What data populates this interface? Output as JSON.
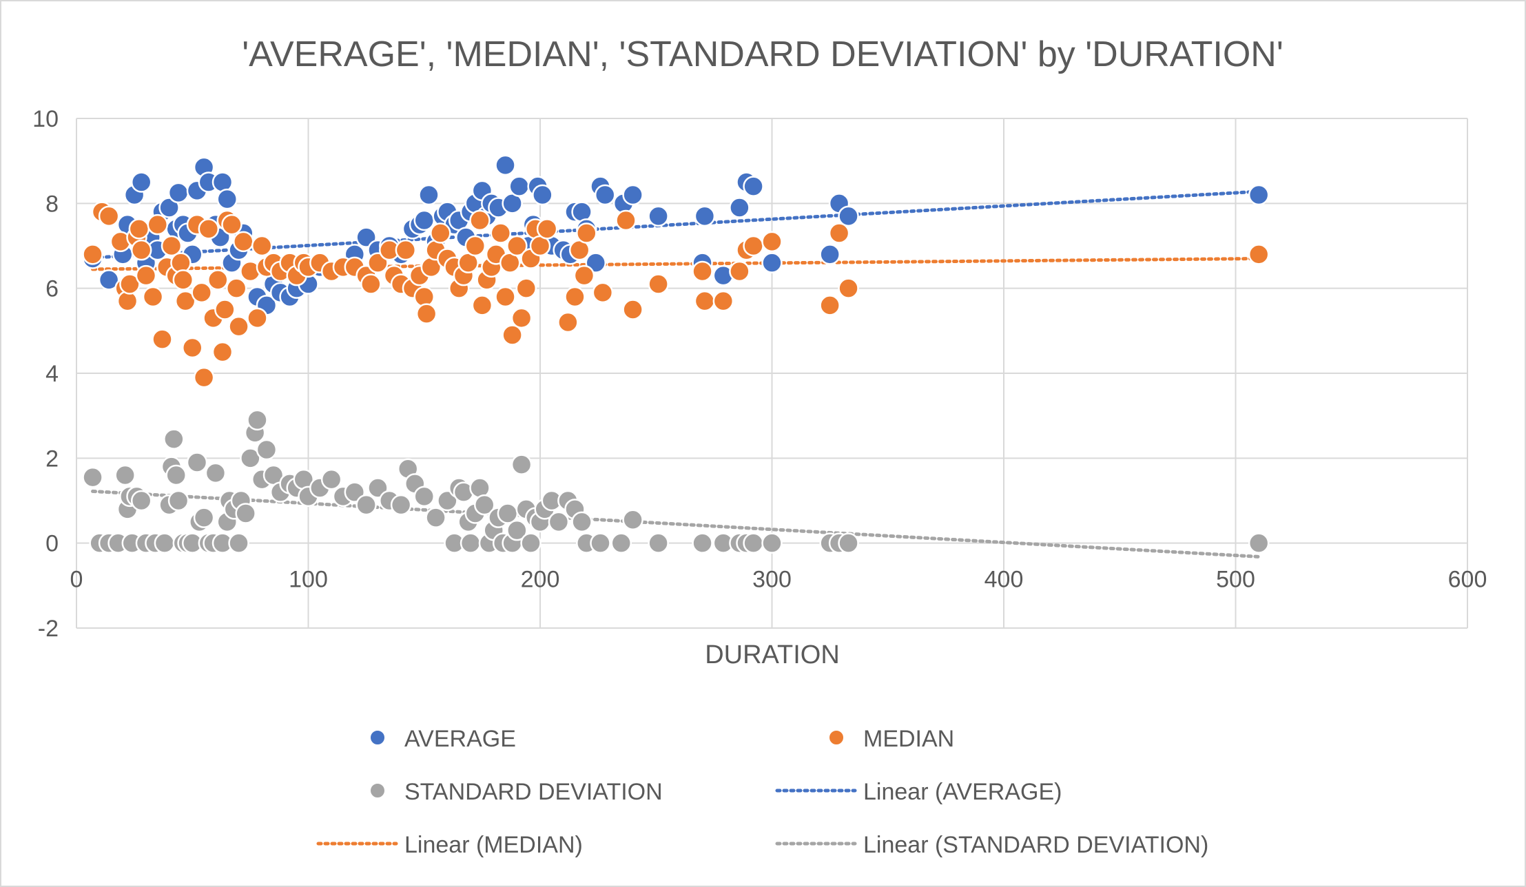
{
  "chart_data": {
    "type": "scatter",
    "title": "'AVERAGE', 'MEDIAN', 'STANDARD DEVIATION' by 'DURATION'",
    "xlabel": "DURATION",
    "ylabel": "",
    "xlim": [
      0,
      600
    ],
    "ylim": [
      -2,
      10
    ],
    "xticks": [
      "0",
      "100",
      "200",
      "300",
      "400",
      "500",
      "600"
    ],
    "yticks": [
      "-2",
      "0",
      "2",
      "4",
      "6",
      "8",
      "10"
    ],
    "grid": true,
    "legend_position": "bottom",
    "series": [
      {
        "name": "AVERAGE",
        "color": "#4472C4",
        "points": [
          [
            7,
            6.7
          ],
          [
            14,
            6.2
          ],
          [
            20,
            6.8
          ],
          [
            22,
            7.5
          ],
          [
            25,
            8.2
          ],
          [
            28,
            8.5
          ],
          [
            30,
            6.6
          ],
          [
            32,
            7.2
          ],
          [
            35,
            6.9
          ],
          [
            37,
            7.8
          ],
          [
            40,
            7.9
          ],
          [
            43,
            7.4
          ],
          [
            44,
            8.25
          ],
          [
            46,
            7.5
          ],
          [
            48,
            7.3
          ],
          [
            50,
            6.8
          ],
          [
            52,
            8.3
          ],
          [
            55,
            8.85
          ],
          [
            57,
            8.5
          ],
          [
            60,
            7.5
          ],
          [
            62,
            7.2
          ],
          [
            63,
            8.5
          ],
          [
            65,
            8.1
          ],
          [
            67,
            6.6
          ],
          [
            70,
            6.9
          ],
          [
            72,
            7.3
          ],
          [
            75,
            6.4
          ],
          [
            78,
            5.8
          ],
          [
            82,
            5.6
          ],
          [
            85,
            6.1
          ],
          [
            88,
            5.9
          ],
          [
            92,
            5.8
          ],
          [
            95,
            6.0
          ],
          [
            98,
            6.3
          ],
          [
            100,
            6.1
          ],
          [
            105,
            6.5
          ],
          [
            110,
            6.4
          ],
          [
            115,
            6.5
          ],
          [
            120,
            6.8
          ],
          [
            125,
            7.2
          ],
          [
            130,
            6.9
          ],
          [
            135,
            7.0
          ],
          [
            140,
            6.8
          ],
          [
            145,
            7.4
          ],
          [
            148,
            7.5
          ],
          [
            150,
            7.6
          ],
          [
            152,
            8.2
          ],
          [
            155,
            7.1
          ],
          [
            158,
            7.7
          ],
          [
            160,
            7.8
          ],
          [
            163,
            7.5
          ],
          [
            165,
            7.6
          ],
          [
            168,
            7.2
          ],
          [
            170,
            7.8
          ],
          [
            172,
            8.0
          ],
          [
            175,
            8.3
          ],
          [
            177,
            7.7
          ],
          [
            179,
            8.0
          ],
          [
            182,
            7.9
          ],
          [
            185,
            8.9
          ],
          [
            188,
            8.0
          ],
          [
            191,
            8.4
          ],
          [
            195,
            7.0
          ],
          [
            197,
            7.5
          ],
          [
            199,
            8.4
          ],
          [
            201,
            8.2
          ],
          [
            205,
            7.0
          ],
          [
            210,
            6.9
          ],
          [
            213,
            6.8
          ],
          [
            215,
            7.8
          ],
          [
            218,
            7.8
          ],
          [
            220,
            7.4
          ],
          [
            224,
            6.6
          ],
          [
            226,
            8.4
          ],
          [
            228,
            8.2
          ],
          [
            236,
            8.0
          ],
          [
            240,
            8.2
          ],
          [
            251,
            7.7
          ],
          [
            270,
            6.6
          ],
          [
            271,
            7.7
          ],
          [
            279,
            6.3
          ],
          [
            286,
            7.9
          ],
          [
            289,
            8.5
          ],
          [
            292,
            8.4
          ],
          [
            300,
            6.6
          ],
          [
            325,
            6.8
          ],
          [
            329,
            8.0
          ],
          [
            333,
            7.7
          ],
          [
            510,
            8.2
          ]
        ]
      },
      {
        "name": "MEDIAN",
        "color": "#ED7D31",
        "points": [
          [
            7,
            6.8
          ],
          [
            11,
            7.8
          ],
          [
            14,
            7.7
          ],
          [
            19,
            7.1
          ],
          [
            21,
            6.0
          ],
          [
            22,
            5.7
          ],
          [
            23,
            6.1
          ],
          [
            26,
            7.2
          ],
          [
            27,
            7.4
          ],
          [
            28,
            6.9
          ],
          [
            30,
            6.3
          ],
          [
            33,
            5.8
          ],
          [
            35,
            7.5
          ],
          [
            37,
            4.8
          ],
          [
            39,
            6.5
          ],
          [
            41,
            7.0
          ],
          [
            43,
            6.3
          ],
          [
            45,
            6.6
          ],
          [
            46,
            6.2
          ],
          [
            47,
            5.7
          ],
          [
            50,
            4.6
          ],
          [
            52,
            7.5
          ],
          [
            54,
            5.9
          ],
          [
            55,
            3.9
          ],
          [
            57,
            7.4
          ],
          [
            59,
            5.3
          ],
          [
            61,
            6.2
          ],
          [
            63,
            4.5
          ],
          [
            64,
            5.5
          ],
          [
            65,
            7.6
          ],
          [
            67,
            7.5
          ],
          [
            69,
            6.0
          ],
          [
            70,
            5.1
          ],
          [
            72,
            7.1
          ],
          [
            75,
            6.4
          ],
          [
            78,
            5.3
          ],
          [
            80,
            7.0
          ],
          [
            82,
            6.5
          ],
          [
            85,
            6.6
          ],
          [
            88,
            6.4
          ],
          [
            92,
            6.6
          ],
          [
            95,
            6.3
          ],
          [
            98,
            6.6
          ],
          [
            100,
            6.5
          ],
          [
            105,
            6.6
          ],
          [
            110,
            6.4
          ],
          [
            115,
            6.5
          ],
          [
            120,
            6.5
          ],
          [
            125,
            6.3
          ],
          [
            127,
            6.1
          ],
          [
            130,
            6.6
          ],
          [
            135,
            6.9
          ],
          [
            137,
            6.3
          ],
          [
            140,
            6.1
          ],
          [
            142,
            6.9
          ],
          [
            145,
            6.0
          ],
          [
            148,
            6.3
          ],
          [
            150,
            5.8
          ],
          [
            151,
            5.4
          ],
          [
            153,
            6.5
          ],
          [
            155,
            6.9
          ],
          [
            157,
            7.3
          ],
          [
            160,
            6.7
          ],
          [
            163,
            6.5
          ],
          [
            165,
            6.0
          ],
          [
            167,
            6.3
          ],
          [
            169,
            6.6
          ],
          [
            172,
            7.0
          ],
          [
            174,
            7.6
          ],
          [
            175,
            5.6
          ],
          [
            177,
            6.2
          ],
          [
            179,
            6.5
          ],
          [
            181,
            6.8
          ],
          [
            183,
            7.3
          ],
          [
            185,
            5.8
          ],
          [
            187,
            6.6
          ],
          [
            188,
            4.9
          ],
          [
            190,
            7.0
          ],
          [
            192,
            5.3
          ],
          [
            194,
            6.0
          ],
          [
            196,
            6.7
          ],
          [
            198,
            7.4
          ],
          [
            200,
            7.0
          ],
          [
            203,
            7.4
          ],
          [
            212,
            5.2
          ],
          [
            215,
            5.8
          ],
          [
            217,
            6.9
          ],
          [
            219,
            6.3
          ],
          [
            220,
            7.3
          ],
          [
            227,
            5.9
          ],
          [
            237,
            7.6
          ],
          [
            240,
            5.5
          ],
          [
            251,
            6.1
          ],
          [
            270,
            6.4
          ],
          [
            271,
            5.7
          ],
          [
            279,
            5.7
          ],
          [
            286,
            6.4
          ],
          [
            289,
            6.9
          ],
          [
            292,
            7.0
          ],
          [
            300,
            7.1
          ],
          [
            325,
            5.6
          ],
          [
            329,
            7.3
          ],
          [
            333,
            6.0
          ],
          [
            510,
            6.8
          ]
        ]
      },
      {
        "name": "STANDARD DEVIATION",
        "color": "#A5A5A5",
        "points": [
          [
            7,
            1.55
          ],
          [
            10,
            0.0
          ],
          [
            14,
            0.0
          ],
          [
            18,
            0.0
          ],
          [
            21,
            1.6
          ],
          [
            22,
            0.8
          ],
          [
            23,
            1.1
          ],
          [
            24,
            0.0
          ],
          [
            26,
            1.1
          ],
          [
            28,
            1.0
          ],
          [
            30,
            0.0
          ],
          [
            34,
            0.0
          ],
          [
            38,
            0.0
          ],
          [
            40,
            0.9
          ],
          [
            41,
            1.8
          ],
          [
            42,
            2.45
          ],
          [
            43,
            1.6
          ],
          [
            44,
            1.0
          ],
          [
            46,
            0.0
          ],
          [
            48,
            0.0
          ],
          [
            50,
            0.0
          ],
          [
            52,
            1.9
          ],
          [
            53,
            0.5
          ],
          [
            55,
            0.6
          ],
          [
            57,
            0.0
          ],
          [
            59,
            0.0
          ],
          [
            60,
            1.65
          ],
          [
            63,
            0.0
          ],
          [
            65,
            0.5
          ],
          [
            66,
            1.0
          ],
          [
            68,
            0.8
          ],
          [
            70,
            0.0
          ],
          [
            71,
            1.0
          ],
          [
            73,
            0.7
          ],
          [
            75,
            2.0
          ],
          [
            77,
            2.6
          ],
          [
            78,
            2.9
          ],
          [
            80,
            1.5
          ],
          [
            82,
            2.2
          ],
          [
            85,
            1.6
          ],
          [
            88,
            1.2
          ],
          [
            92,
            1.4
          ],
          [
            95,
            1.3
          ],
          [
            98,
            1.5
          ],
          [
            100,
            1.1
          ],
          [
            105,
            1.3
          ],
          [
            110,
            1.5
          ],
          [
            115,
            1.1
          ],
          [
            120,
            1.2
          ],
          [
            125,
            0.9
          ],
          [
            130,
            1.3
          ],
          [
            135,
            1.0
          ],
          [
            140,
            0.9
          ],
          [
            143,
            1.75
          ],
          [
            146,
            1.4
          ],
          [
            150,
            1.1
          ],
          [
            155,
            0.6
          ],
          [
            160,
            1.0
          ],
          [
            163,
            0.0
          ],
          [
            165,
            1.3
          ],
          [
            167,
            1.2
          ],
          [
            169,
            0.5
          ],
          [
            170,
            0.0
          ],
          [
            172,
            0.7
          ],
          [
            174,
            1.3
          ],
          [
            176,
            0.9
          ],
          [
            178,
            0.0
          ],
          [
            180,
            0.3
          ],
          [
            182,
            0.6
          ],
          [
            184,
            0.0
          ],
          [
            186,
            0.7
          ],
          [
            188,
            0.0
          ],
          [
            190,
            0.3
          ],
          [
            192,
            1.85
          ],
          [
            194,
            0.8
          ],
          [
            196,
            0.0
          ],
          [
            198,
            0.6
          ],
          [
            200,
            0.5
          ],
          [
            202,
            0.8
          ],
          [
            205,
            1.0
          ],
          [
            208,
            0.5
          ],
          [
            212,
            1.0
          ],
          [
            215,
            0.8
          ],
          [
            218,
            0.5
          ],
          [
            220,
            0.0
          ],
          [
            226,
            0.0
          ],
          [
            235,
            0.0
          ],
          [
            240,
            0.55
          ],
          [
            251,
            0.0
          ],
          [
            270,
            0.0
          ],
          [
            279,
            0.0
          ],
          [
            286,
            0.0
          ],
          [
            289,
            0.0
          ],
          [
            292,
            0.0
          ],
          [
            300,
            0.0
          ],
          [
            325,
            0.0
          ],
          [
            329,
            0.0
          ],
          [
            333,
            0.0
          ],
          [
            510,
            0.0
          ]
        ]
      }
    ],
    "trendlines": [
      {
        "name": "Linear (AVERAGE)",
        "color": "#4472C4",
        "x": [
          7,
          510
        ],
        "y": [
          6.72,
          8.28
        ]
      },
      {
        "name": "Linear (MEDIAN)",
        "color": "#ED7D31",
        "x": [
          7,
          510
        ],
        "y": [
          6.45,
          6.7
        ]
      },
      {
        "name": "Linear (STANDARD DEVIATION)",
        "color": "#A5A5A5",
        "x": [
          7,
          510
        ],
        "y": [
          1.22,
          -0.32
        ]
      }
    ]
  }
}
